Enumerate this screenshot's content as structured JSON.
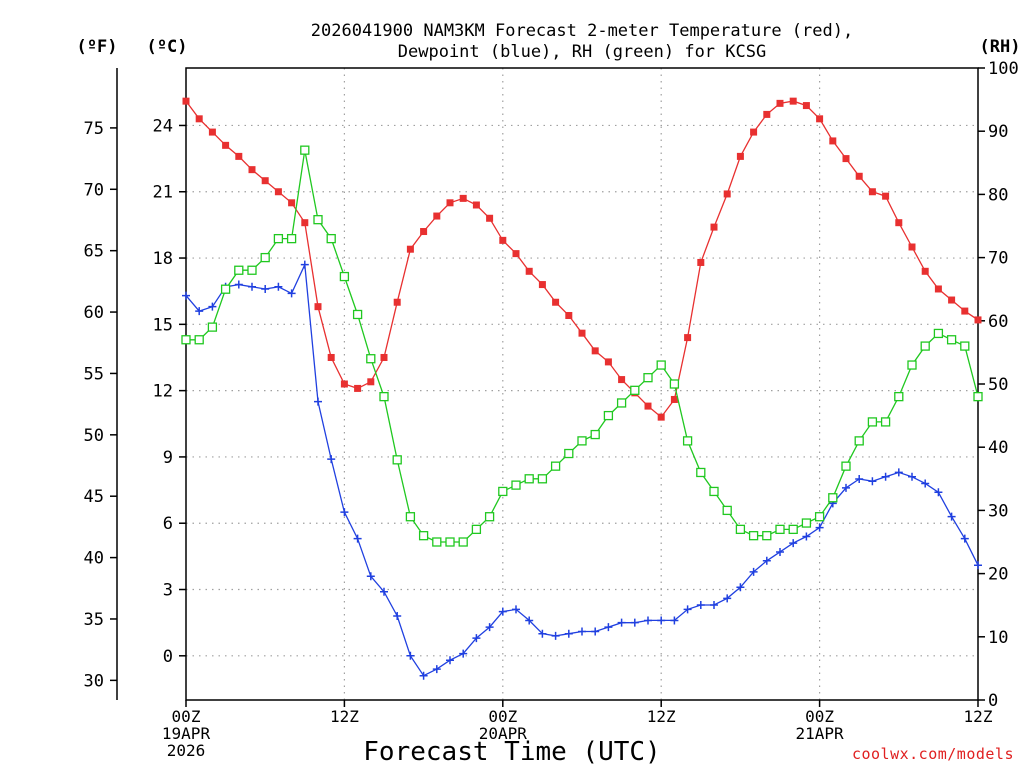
{
  "chart_data": {
    "type": "line",
    "title_line1": "2026041900 NAM3KM Forecast 2-meter Temperature (red),",
    "title_line2": "Dewpoint (blue), RH (green) for KCSG",
    "xlabel": "Forecast Time (UTC)",
    "credit": "coolwx.com/models",
    "units": {
      "fahrenheit": "(ºF)",
      "celsius": "(ºC)",
      "rh": "(RH)"
    },
    "x_hours_range": [
      0,
      60
    ],
    "x_ticks": [
      {
        "hour": 0,
        "line1": "00Z",
        "line2": "19APR",
        "line3": "2026"
      },
      {
        "hour": 12,
        "line1": "12Z",
        "line2": "",
        "line3": ""
      },
      {
        "hour": 24,
        "line1": "00Z",
        "line2": "20APR",
        "line3": ""
      },
      {
        "hour": 36,
        "line1": "12Z",
        "line2": "",
        "line3": ""
      },
      {
        "hour": 48,
        "line1": "00Z",
        "line2": "21APR",
        "line3": ""
      },
      {
        "hour": 60,
        "line1": "12Z",
        "line2": "",
        "line3": ""
      }
    ],
    "celsius_range": [
      -2,
      26.6
    ],
    "celsius_ticks": [
      "0",
      "3",
      "6",
      "9",
      "12",
      "15",
      "18",
      "21",
      "24"
    ],
    "fahrenheit_ticks": [
      "30",
      "35",
      "40",
      "45",
      "50",
      "55",
      "60",
      "65",
      "70",
      "75"
    ],
    "rh_range": [
      0,
      100
    ],
    "rh_ticks": [
      "0",
      "10",
      "20",
      "30",
      "40",
      "50",
      "60",
      "70",
      "80",
      "90",
      "100"
    ],
    "series": [
      {
        "name": "2-meter Temperature (°C)",
        "axis": "celsius",
        "color": "#e83030",
        "marker": "filled-square",
        "values": [
          25.1,
          24.3,
          23.7,
          23.1,
          22.6,
          22.0,
          21.5,
          21.0,
          20.5,
          19.6,
          15.8,
          13.5,
          12.3,
          12.1,
          12.4,
          13.5,
          16.0,
          18.4,
          19.2,
          19.9,
          20.5,
          20.7,
          20.4,
          19.8,
          18.8,
          18.2,
          17.4,
          16.8,
          16.0,
          15.4,
          14.6,
          13.8,
          13.3,
          12.5,
          11.9,
          11.3,
          10.8,
          11.6,
          14.4,
          17.8,
          19.4,
          20.9,
          22.6,
          23.7,
          24.5,
          25.0,
          25.1,
          24.9,
          24.3,
          23.3,
          22.5,
          21.7,
          21.0,
          20.8,
          19.6,
          18.5,
          17.4,
          16.6,
          16.1,
          15.6,
          15.2
        ]
      },
      {
        "name": "Dewpoint (°C)",
        "axis": "celsius",
        "color": "#2040e0",
        "marker": "plus",
        "values": [
          16.3,
          15.6,
          15.8,
          16.7,
          16.8,
          16.7,
          16.6,
          16.7,
          16.4,
          17.7,
          11.5,
          8.9,
          6.5,
          5.3,
          3.6,
          2.9,
          1.8,
          0.0,
          -0.9,
          -0.6,
          -0.2,
          0.1,
          0.8,
          1.3,
          2.0,
          2.1,
          1.6,
          1.0,
          0.9,
          1.0,
          1.1,
          1.1,
          1.3,
          1.5,
          1.5,
          1.6,
          1.6,
          1.6,
          2.1,
          2.3,
          2.3,
          2.6,
          3.1,
          3.8,
          4.3,
          4.7,
          5.1,
          5.4,
          5.8,
          6.9,
          7.6,
          8.0,
          7.9,
          8.1,
          8.3,
          8.1,
          7.8,
          7.4,
          6.3,
          5.3,
          4.1
        ]
      },
      {
        "name": "RH (%)",
        "axis": "rh",
        "color": "#20c820",
        "marker": "open-square",
        "values": [
          57,
          57,
          59,
          65,
          68,
          68,
          70,
          73,
          73,
          87,
          76,
          73,
          67,
          61,
          54,
          48,
          38,
          29,
          26,
          25,
          25,
          25,
          27,
          29,
          33,
          34,
          35,
          35,
          37,
          39,
          41,
          42,
          45,
          47,
          49,
          51,
          53,
          50,
          41,
          36,
          33,
          30,
          27,
          26,
          26,
          27,
          27,
          28,
          29,
          32,
          37,
          41,
          44,
          44,
          48,
          53,
          56,
          58,
          57,
          56,
          48
        ]
      }
    ]
  }
}
